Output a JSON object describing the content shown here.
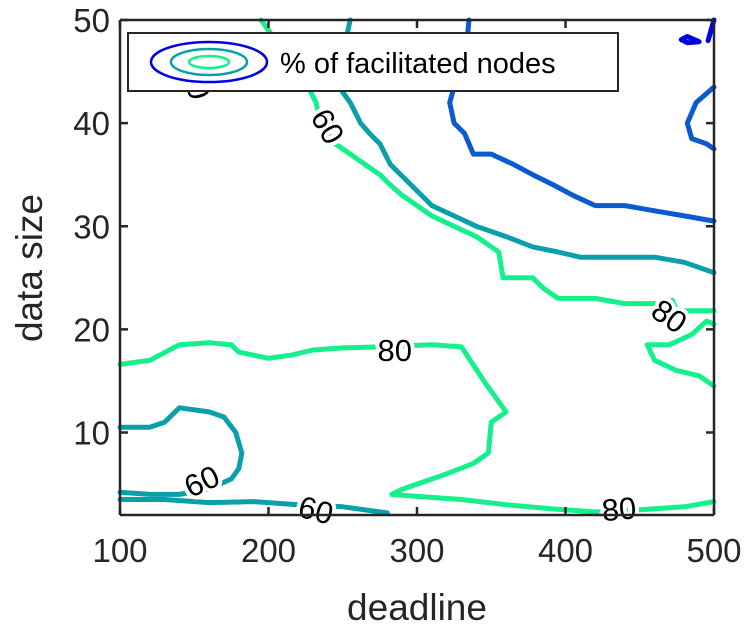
{
  "chart_data": {
    "type": "contour",
    "xlabel": "deadline",
    "ylabel": "data size",
    "xlim": [
      100,
      500
    ],
    "ylim": [
      2,
      50
    ],
    "xticks": [
      100,
      200,
      300,
      400,
      500
    ],
    "yticks": [
      10,
      20,
      30,
      40,
      50
    ],
    "grid": false,
    "legend": {
      "label": "% of facilitated nodes",
      "placement": "top-left"
    },
    "colors": {
      "level_40": "#0000e6",
      "level_50": "#0a5ad2",
      "level_60": "#0aa0aa",
      "level_80": "#14f08c",
      "axis": "#262626"
    },
    "contours": [
      {
        "level": 80,
        "color": "#14f08c",
        "points": [
          [
            195,
            50
          ],
          [
            205,
            48
          ],
          [
            215,
            46
          ],
          [
            225,
            44
          ],
          [
            232,
            42
          ],
          [
            235,
            40
          ],
          [
            245,
            38
          ],
          [
            255,
            37
          ],
          [
            265,
            36
          ],
          [
            275,
            35
          ],
          [
            282,
            34
          ],
          [
            290,
            33
          ],
          [
            300,
            32
          ],
          [
            310,
            31
          ],
          [
            325,
            30
          ],
          [
            340,
            29
          ],
          [
            355,
            27.5
          ],
          [
            358,
            25
          ],
          [
            378,
            25
          ],
          [
            385,
            24
          ],
          [
            395,
            23
          ],
          [
            420,
            23
          ],
          [
            440,
            22.5
          ],
          [
            460,
            22.5
          ],
          [
            472,
            22.8
          ],
          [
            475,
            21.8
          ],
          [
            500,
            21.8
          ]
        ]
      },
      {
        "level": 80,
        "color": "#14f08c",
        "points": [
          [
            100,
            16.6
          ],
          [
            120,
            17
          ],
          [
            140,
            18.5
          ],
          [
            160,
            18.7
          ],
          [
            175,
            18.5
          ],
          [
            180,
            17.8
          ],
          [
            190,
            17.5
          ],
          [
            200,
            17.2
          ],
          [
            215,
            17.5
          ],
          [
            230,
            18
          ],
          [
            250,
            18.2
          ],
          [
            275,
            18.3
          ],
          [
            310,
            18.5
          ],
          [
            330,
            18.3
          ],
          [
            345,
            15
          ],
          [
            360,
            12
          ],
          [
            350,
            11
          ],
          [
            348,
            8
          ],
          [
            338,
            7
          ],
          [
            320,
            6
          ],
          [
            300,
            5
          ],
          [
            290,
            4.5
          ],
          [
            283,
            4
          ],
          [
            300,
            3.8
          ],
          [
            330,
            3.5
          ],
          [
            360,
            3
          ],
          [
            390,
            2.6
          ],
          [
            420,
            2.3
          ],
          [
            450,
            2.5
          ],
          [
            480,
            2.8
          ],
          [
            500,
            3.3
          ]
        ]
      },
      {
        "level": 80,
        "color": "#14f08c",
        "points": [
          [
            500,
            20.5
          ],
          [
            495,
            20.8
          ],
          [
            485,
            19.5
          ],
          [
            470,
            18.5
          ],
          [
            455,
            18.5
          ],
          [
            460,
            17
          ],
          [
            475,
            16
          ],
          [
            490,
            15.5
          ],
          [
            500,
            14.5
          ]
        ]
      },
      {
        "level": 60,
        "color": "#0aa0aa",
        "points": [
          [
            255,
            50
          ],
          [
            252,
            48
          ],
          [
            248,
            47
          ],
          [
            240,
            46
          ],
          [
            237,
            45
          ],
          [
            245,
            44
          ],
          [
            255,
            42
          ],
          [
            262,
            40
          ],
          [
            268,
            39
          ],
          [
            275,
            38
          ],
          [
            282,
            36
          ],
          [
            296,
            34
          ],
          [
            310,
            32
          ],
          [
            325,
            31
          ],
          [
            340,
            30
          ],
          [
            360,
            29
          ],
          [
            378,
            28
          ],
          [
            395,
            27.5
          ],
          [
            410,
            27
          ],
          [
            440,
            27
          ],
          [
            460,
            27
          ],
          [
            480,
            26.5
          ],
          [
            500,
            25.5
          ]
        ]
      },
      {
        "level": 60,
        "color": "#0aa0aa",
        "points": [
          [
            100,
            10.5
          ],
          [
            120,
            10.5
          ],
          [
            130,
            11
          ],
          [
            140,
            12.4
          ],
          [
            160,
            12
          ],
          [
            170,
            11.5
          ],
          [
            178,
            10
          ],
          [
            182,
            8
          ],
          [
            180,
            6.5
          ],
          [
            175,
            5.5
          ],
          [
            160,
            4.5
          ],
          [
            140,
            4
          ],
          [
            120,
            4
          ],
          [
            100,
            4.2
          ]
        ]
      },
      {
        "level": 60,
        "color": "#0aa0aa",
        "points": [
          [
            100,
            3.5
          ],
          [
            130,
            3.5
          ],
          [
            160,
            3.2
          ],
          [
            190,
            3.3
          ],
          [
            220,
            3
          ],
          [
            250,
            2.8
          ],
          [
            280,
            2.2
          ]
        ]
      },
      {
        "level": 50,
        "color": "#0a5ad2",
        "points": [
          [
            335,
            50
          ],
          [
            333,
            47
          ],
          [
            328,
            45
          ],
          [
            322,
            42
          ],
          [
            325,
            40
          ],
          [
            332,
            39
          ],
          [
            338,
            37
          ],
          [
            350,
            37
          ],
          [
            365,
            36
          ],
          [
            378,
            35
          ],
          [
            392,
            34
          ],
          [
            405,
            33
          ],
          [
            420,
            32
          ],
          [
            440,
            32
          ],
          [
            460,
            31.5
          ],
          [
            480,
            31
          ],
          [
            500,
            30.5
          ]
        ]
      },
      {
        "level": 50,
        "color": "#0a5ad2",
        "points": [
          [
            500,
            43.5
          ],
          [
            488,
            42
          ],
          [
            482,
            40
          ],
          [
            485,
            38.5
          ],
          [
            495,
            38
          ],
          [
            500,
            37.5
          ]
        ]
      },
      {
        "level": 40,
        "color": "#0000e6",
        "points": [
          [
            500,
            50
          ],
          [
            498,
            49
          ],
          [
            496,
            48
          ]
        ]
      },
      {
        "level": 40,
        "color": "#0000e6",
        "points": [
          [
            478,
            48.1
          ],
          [
            482,
            47.8
          ],
          [
            490,
            47.9
          ],
          [
            482,
            48.4
          ],
          [
            478,
            48.1
          ]
        ]
      }
    ],
    "contour_labels": [
      {
        "text": "60",
        "x": 240,
        "y": 39.7,
        "rotate": 60
      },
      {
        "text": "60",
        "x": 155,
        "y": 5.3,
        "rotate": -25
      },
      {
        "text": "60",
        "x": 232,
        "y": 2.5,
        "rotate": 15
      },
      {
        "text": "80",
        "x": 285,
        "y": 18.0,
        "rotate": 0
      },
      {
        "text": "80",
        "x": 470,
        "y": 21.3,
        "rotate": 35
      },
      {
        "text": "80",
        "x": 436,
        "y": 2.6,
        "rotate": -5
      },
      {
        "text": "0",
        "x": 153,
        "y": 43.2,
        "rotate": 75
      }
    ]
  }
}
